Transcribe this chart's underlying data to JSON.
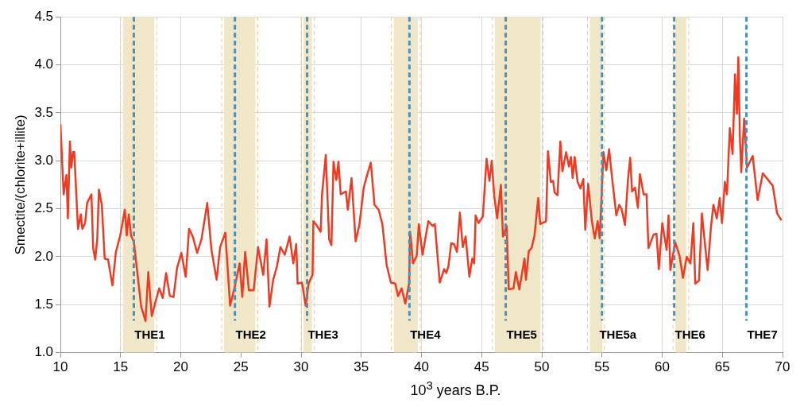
{
  "chart_data": {
    "type": "line",
    "xlabel": "10$^{3}$ years  B.P.",
    "ylabel": "Smectite/(chlorite+illite)",
    "xlim": [
      10,
      70
    ],
    "xticks": [
      10,
      15,
      20,
      25,
      30,
      35,
      40,
      45,
      50,
      55,
      60,
      65,
      70
    ],
    "ylim": [
      1.0,
      4.5
    ],
    "yticks": [
      {
        "value": 1,
        "label": "1.0"
      },
      {
        "value": 1.5,
        "label": "1.5"
      },
      {
        "value": 2,
        "label": "2.0"
      },
      {
        "value": 2.5,
        "label": "2.5"
      },
      {
        "value": 3,
        "label": "3.0"
      },
      {
        "value": 3.5,
        "label": "3.5"
      },
      {
        "value": 4,
        "label": "4.0"
      },
      {
        "value": 4.5,
        "label": "4.5"
      }
    ],
    "grid": true,
    "marker": "none",
    "line_style": "solid",
    "series": [
      {
        "color": "#ee3b24",
        "x": [
          10.0,
          10.27,
          10.5,
          10.62,
          10.79,
          10.91,
          11.05,
          11.15,
          11.46,
          11.7,
          11.82,
          12.05,
          12.22,
          12.58,
          12.72,
          12.89,
          13.06,
          13.2,
          13.44,
          13.68,
          13.96,
          14.32,
          14.61,
          14.97,
          15.35,
          15.51,
          15.68,
          15.87,
          16.11,
          16.35,
          16.71,
          17.07,
          17.3,
          17.59,
          17.9,
          18.21,
          18.5,
          18.78,
          19.09,
          19.4,
          19.69,
          20.05,
          20.41,
          20.69,
          21.0,
          21.36,
          21.72,
          22.2,
          22.55,
          22.98,
          23.27,
          23.7,
          24.1,
          24.51,
          24.89,
          25.11,
          25.35,
          25.66,
          26.06,
          26.42,
          26.85,
          27.13,
          27.37,
          27.68,
          27.99,
          28.28,
          28.64,
          29.04,
          29.35,
          29.59,
          29.71,
          30.07,
          30.38,
          30.62,
          30.95,
          31.02,
          31.33,
          31.62,
          31.74,
          32.05,
          32.33,
          32.52,
          32.69,
          32.93,
          33.1,
          33.29,
          33.72,
          33.88,
          34.19,
          34.53,
          34.84,
          35.2,
          35.48,
          35.79,
          36.1,
          36.44,
          36.75,
          37.11,
          37.46,
          37.82,
          38.06,
          38.35,
          38.66,
          38.97,
          39.06,
          39.3,
          39.61,
          39.78,
          40.09,
          40.57,
          40.92,
          41.11,
          41.28,
          41.52,
          41.88,
          42.07,
          42.24,
          42.47,
          42.71,
          42.95,
          43.19,
          43.43,
          43.67,
          43.98,
          44.22,
          44.38,
          44.5,
          44.74,
          45.1,
          45.41,
          45.65,
          45.84,
          46.05,
          46.29,
          46.6,
          46.77,
          47.08,
          47.25,
          47.65,
          47.84,
          48.13,
          48.56,
          48.68,
          48.92,
          49.15,
          49.39,
          49.7,
          49.87,
          50.35,
          50.51,
          50.75,
          50.94,
          51.06,
          51.3,
          51.54,
          51.71,
          52.02,
          52.25,
          52.42,
          52.56,
          52.73,
          52.97,
          53.21,
          53.45,
          53.61,
          53.85,
          54.16,
          54.4,
          54.64,
          54.81,
          55.12,
          55.36,
          55.59,
          55.83,
          56.19,
          56.43,
          56.62,
          56.91,
          57.15,
          57.34,
          57.5,
          57.74,
          57.98,
          58.15,
          58.46,
          58.7,
          58.86,
          59.29,
          59.53,
          59.72,
          60.01,
          60.37,
          60.53,
          60.68,
          61.08,
          61.44,
          61.73,
          62.04,
          62.35,
          62.59,
          62.75,
          63.06,
          63.3,
          63.59,
          63.78,
          64.06,
          64.26,
          64.54,
          64.78,
          64.97,
          65.21,
          65.38,
          65.62,
          65.85,
          66.05,
          66.21,
          66.33,
          66.45,
          66.57,
          66.81,
          67.05,
          67.52,
          67.93,
          68.36,
          69.19,
          69.55,
          69.91
        ],
        "values": [
          3.38,
          2.65,
          2.85,
          2.4,
          3.2,
          2.93,
          3.09,
          3.09,
          2.29,
          2.44,
          2.29,
          2.35,
          2.56,
          2.65,
          2.09,
          1.97,
          2.18,
          2.7,
          2.54,
          1.98,
          1.97,
          1.7,
          2.05,
          2.22,
          2.49,
          2.22,
          2.44,
          2.22,
          2.15,
          1.88,
          1.48,
          1.33,
          1.84,
          1.38,
          1.53,
          1.67,
          1.57,
          1.83,
          1.59,
          1.58,
          1.88,
          2.04,
          1.79,
          2.29,
          2.21,
          2.04,
          2.18,
          2.56,
          2.07,
          1.76,
          2.1,
          2.25,
          1.49,
          1.7,
          1.93,
          1.58,
          2.05,
          1.65,
          1.65,
          2.1,
          1.81,
          2.18,
          1.48,
          1.76,
          1.9,
          2.1,
          2.02,
          2.21,
          1.93,
          2.13,
          1.72,
          1.73,
          1.49,
          1.72,
          1.81,
          2.37,
          2.32,
          2.26,
          2.65,
          3.06,
          2.18,
          2.12,
          2.99,
          2.8,
          2.99,
          2.65,
          2.68,
          2.49,
          2.82,
          2.16,
          2.33,
          2.72,
          2.85,
          2.98,
          2.54,
          2.49,
          2.34,
          1.91,
          1.73,
          1.72,
          1.59,
          1.67,
          1.51,
          1.72,
          2.26,
          1.93,
          2.01,
          2.34,
          2.02,
          2.37,
          2.32,
          2.34,
          2.09,
          1.73,
          1.87,
          1.83,
          1.9,
          2.14,
          2.13,
          2.05,
          2.46,
          2.1,
          2.21,
          1.79,
          1.98,
          1.93,
          2.43,
          2.35,
          2.42,
          3.02,
          2.79,
          3.0,
          2.63,
          2.4,
          2.75,
          2.21,
          2.32,
          1.66,
          1.67,
          1.84,
          1.66,
          1.98,
          1.76,
          2.06,
          2.09,
          2.22,
          2.61,
          2.34,
          2.37,
          3.1,
          2.78,
          2.79,
          2.67,
          2.64,
          3.2,
          2.89,
          3.09,
          2.94,
          3.04,
          2.82,
          3.04,
          2.78,
          2.71,
          2.81,
          2.28,
          2.76,
          2.37,
          2.19,
          2.37,
          2.19,
          3.09,
          2.9,
          3.12,
          2.83,
          2.43,
          2.54,
          2.5,
          2.33,
          2.79,
          3.03,
          2.68,
          2.72,
          2.51,
          2.86,
          2.65,
          2.65,
          2.09,
          2.23,
          2.24,
          1.87,
          2.35,
          2.07,
          2.43,
          1.86,
          2.15,
          2.01,
          1.78,
          2.0,
          1.93,
          2.35,
          1.72,
          1.75,
          2.45,
          2.09,
          1.86,
          2.32,
          2.54,
          2.4,
          2.61,
          2.35,
          2.78,
          2.65,
          3.34,
          3.07,
          3.9,
          3.49,
          4.08,
          3.27,
          2.88,
          3.44,
          2.93,
          3.05,
          2.59,
          2.87,
          2.74,
          2.45,
          2.38
        ]
      }
    ],
    "bands": [
      {
        "axis": "x",
        "from": 15.2,
        "to": 17.8,
        "color": "#f0e6c8"
      },
      {
        "axis": "x",
        "from": 23.6,
        "to": 26.2,
        "color": "#f0e6c8"
      },
      {
        "axis": "x",
        "from": 30.2,
        "to": 30.9,
        "color": "#f0e6c8"
      },
      {
        "axis": "x",
        "from": 37.7,
        "to": 39.7,
        "color": "#f0e6c8"
      },
      {
        "axis": "x",
        "from": 46.1,
        "to": 49.9,
        "color": "#f0e6c8"
      },
      {
        "axis": "x",
        "from": 54.0,
        "to": 55.0,
        "color": "#f0e6c8"
      },
      {
        "axis": "x",
        "from": 61.1,
        "to": 62.0,
        "color": "#f0e6c8"
      }
    ],
    "ref_lines": [
      {
        "axis": "x",
        "value": 16.1,
        "label": "THE1",
        "color": "#4a90b8",
        "line_style": "dashed"
      },
      {
        "axis": "x",
        "value": 24.5,
        "label": "THE2",
        "color": "#4a90b8",
        "line_style": "dashed"
      },
      {
        "axis": "x",
        "value": 30.5,
        "label": "THE3",
        "color": "#4a90b8",
        "line_style": "dashed"
      },
      {
        "axis": "x",
        "value": 39.0,
        "label": "THE4",
        "color": "#4a90b8",
        "line_style": "dashed"
      },
      {
        "axis": "x",
        "value": 47.0,
        "label": "THE5",
        "color": "#4a90b8",
        "line_style": "dashed"
      },
      {
        "axis": "x",
        "value": 55.0,
        "label": "THE5a",
        "color": "#4a90b8",
        "line_style": "dashed"
      },
      {
        "axis": "x",
        "value": 61.0,
        "label": "THE6",
        "color": "#4a90b8",
        "line_style": "dashed"
      },
      {
        "axis": "x",
        "value": 67.0,
        "label": "THE7",
        "color": "#4a90b8",
        "line_style": "dashed"
      }
    ]
  }
}
